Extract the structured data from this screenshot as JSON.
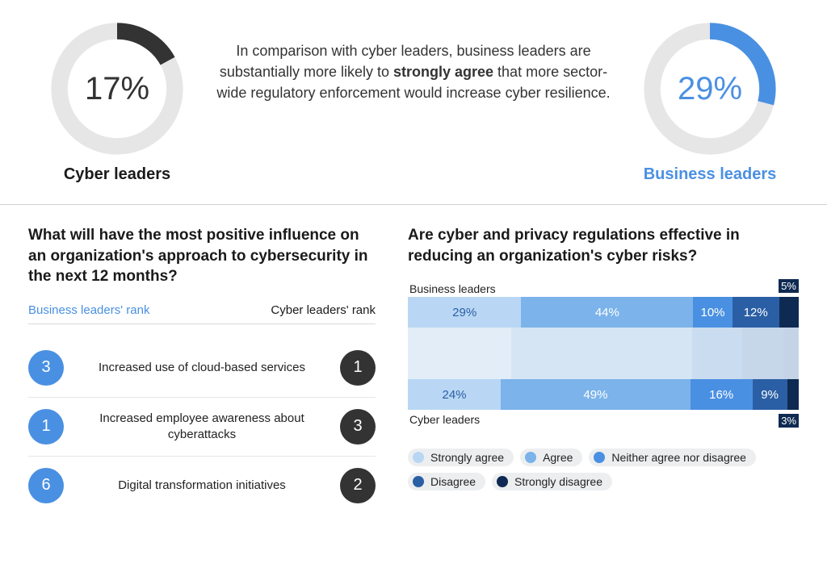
{
  "colors": {
    "cyber_dark": "#333333",
    "business_blue": "#4a90e2",
    "ring_bg": "#e6e6e6",
    "divider": "#d0d0d0",
    "text": "#1a1a1a"
  },
  "top": {
    "left_donut": {
      "value": 17,
      "display": "17%",
      "label": "Cyber leaders",
      "color": "#333333",
      "label_color": "#1a1a1a",
      "value_color": "#333333"
    },
    "right_donut": {
      "value": 29,
      "display": "29%",
      "label": "Business leaders",
      "color": "#4a90e2",
      "label_color": "#4a90e2",
      "value_color": "#4a90e2"
    },
    "text_before_bold": "In comparison with cyber leaders, business leaders are substantially more likely to ",
    "text_bold": "strongly agree",
    "text_after_bold": " that more sector-wide regulatory enforcement would increase cyber resilience.",
    "donut_ring_bg": "#e6e6e6",
    "donut_stroke_width": 12
  },
  "left": {
    "title": "What will have the most positive influence on an organization's approach to cybersecurity in the next 12 months?",
    "header_business": "Business leaders' rank",
    "header_business_color": "#4a90e2",
    "header_cyber": "Cyber leaders' rank",
    "header_cyber_color": "#1a1a1a",
    "business_circle_color": "#4a90e2",
    "cyber_circle_color": "#333333",
    "rows": [
      {
        "business_rank": "3",
        "label": "Increased use of cloud-based services",
        "cyber_rank": "1"
      },
      {
        "business_rank": "1",
        "label": "Increased employee awareness about cyberattacks",
        "cyber_rank": "3"
      },
      {
        "business_rank": "6",
        "label": "Digital transformation initiatives",
        "cyber_rank": "2"
      }
    ]
  },
  "right": {
    "title": "Are cyber and privacy regulations effective in reducing an organization's cyber risks?",
    "groups": [
      {
        "label": "Business leaders",
        "segments": [
          {
            "value": 29,
            "display": "29%",
            "color": "#b9d7f4"
          },
          {
            "value": 44,
            "display": "44%",
            "color": "#7bb3ea"
          },
          {
            "value": 10,
            "display": "10%",
            "color": "#4a90e2"
          },
          {
            "value": 12,
            "display": "12%",
            "color": "#2b5fa5"
          },
          {
            "value": 5,
            "display": "5%",
            "color": "#0f2a52",
            "out": "above"
          }
        ]
      },
      {
        "label": "Cyber leaders",
        "segments": [
          {
            "value": 24,
            "display": "24%",
            "color": "#b9d7f4"
          },
          {
            "value": 49,
            "display": "49%",
            "color": "#7bb3ea"
          },
          {
            "value": 16,
            "display": "16%",
            "color": "#4a90e2"
          },
          {
            "value": 9,
            "display": "9%",
            "color": "#2b5fa5"
          },
          {
            "value": 3,
            "display": "3%",
            "color": "#0f2a52",
            "out": "below"
          }
        ]
      }
    ],
    "spacer_colors": [
      "#e3edf7",
      "#d6e5f3",
      "#cadcef",
      "#c6d7ea",
      "#c4d4e6"
    ],
    "legend": [
      {
        "label": "Strongly agree",
        "color": "#b9d7f4"
      },
      {
        "label": "Agree",
        "color": "#7bb3ea"
      },
      {
        "label": "Neither agree nor disagree",
        "color": "#4a90e2"
      },
      {
        "label": "Disagree",
        "color": "#2b5fa5"
      },
      {
        "label": "Strongly disagree",
        "color": "#0f2a52"
      }
    ]
  }
}
